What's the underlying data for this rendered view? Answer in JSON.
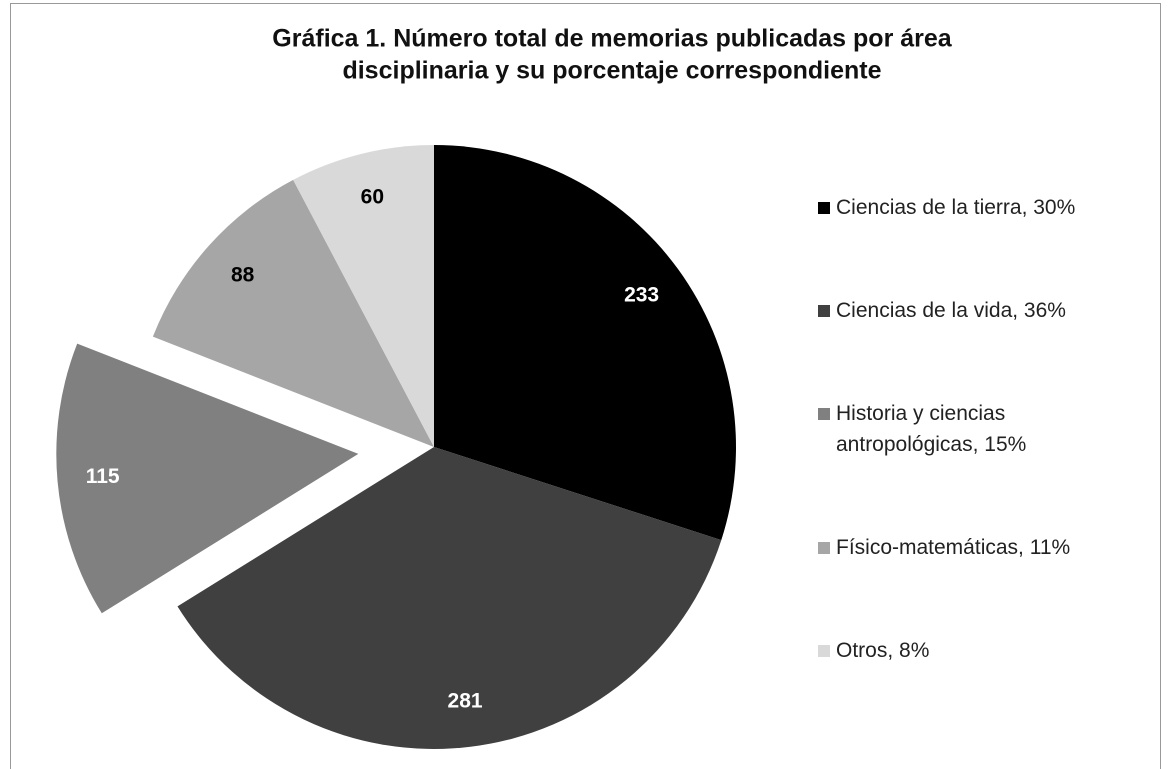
{
  "chart_data": {
    "type": "pie",
    "title": [
      "Gráfica 1. Número total de memorias publicadas por área",
      "disciplinaria y su porcentaje correspondiente"
    ],
    "categories": [
      "Ciencias de la tierra, 30%",
      "Ciencias de la vida, 36%",
      "Historia y ciencias antropológicas, 15%",
      "Físico-matemáticas, 11%",
      "Otros, 8%"
    ],
    "values": [
      233,
      281,
      115,
      88,
      60
    ],
    "colors": [
      "#000000",
      "#404040",
      "#808080",
      "#a6a6a6",
      "#d9d9d9"
    ],
    "explode": [
      false,
      false,
      true,
      false,
      false
    ],
    "legend": "right"
  }
}
